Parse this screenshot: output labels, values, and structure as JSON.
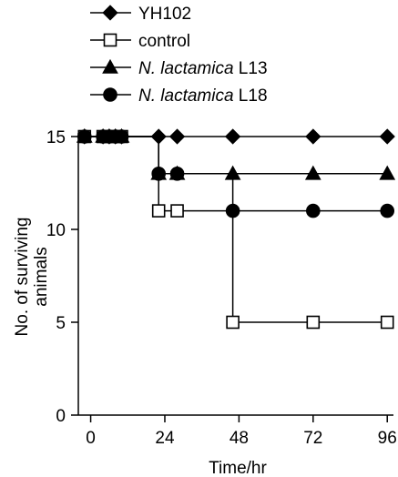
{
  "chart_data": {
    "type": "line",
    "title": "",
    "xlabel": "Time/hr",
    "ylabel": "No. of surviving\nanimals",
    "xlim": [
      -4,
      98
    ],
    "ylim": [
      0,
      15
    ],
    "xticks": [
      0,
      24,
      48,
      72,
      96
    ],
    "yticks": [
      0,
      5,
      10,
      15
    ],
    "grid": false,
    "legend_position": "top-left",
    "step": true,
    "series": [
      {
        "name": "YH102",
        "name_parts": [
          {
            "text": "YH102",
            "italic": false
          }
        ],
        "marker": "diamond",
        "fill": "#000000",
        "x": [
          -2,
          4,
          6,
          8,
          10,
          22,
          28,
          46,
          72,
          96
        ],
        "y": [
          15,
          15,
          15,
          15,
          15,
          15,
          15,
          15,
          15,
          15
        ]
      },
      {
        "name": "control",
        "name_parts": [
          {
            "text": "control",
            "italic": false
          }
        ],
        "marker": "square",
        "fill": "#ffffff",
        "x": [
          -2,
          4,
          6,
          8,
          10,
          22,
          28,
          46,
          72,
          96
        ],
        "y": [
          15,
          15,
          15,
          15,
          15,
          11,
          11,
          5,
          5,
          5
        ]
      },
      {
        "name": "N. lactamica L13",
        "name_parts": [
          {
            "text": "N. lactamica",
            "italic": true
          },
          {
            "text": " L13",
            "italic": false
          }
        ],
        "marker": "triangle",
        "fill": "#000000",
        "x": [
          -2,
          4,
          6,
          8,
          10,
          22,
          28,
          46,
          72,
          96
        ],
        "y": [
          15,
          15,
          15,
          15,
          15,
          13,
          13,
          13,
          13,
          13
        ]
      },
      {
        "name": "N. lactamica L18",
        "name_parts": [
          {
            "text": "N. lactamica",
            "italic": true
          },
          {
            "text": " L18",
            "italic": false
          }
        ],
        "marker": "circle",
        "fill": "#000000",
        "x": [
          -2,
          4,
          6,
          8,
          10,
          22,
          28,
          46,
          72,
          96
        ],
        "y": [
          15,
          15,
          15,
          15,
          15,
          13,
          13,
          11,
          11,
          11
        ]
      }
    ]
  }
}
